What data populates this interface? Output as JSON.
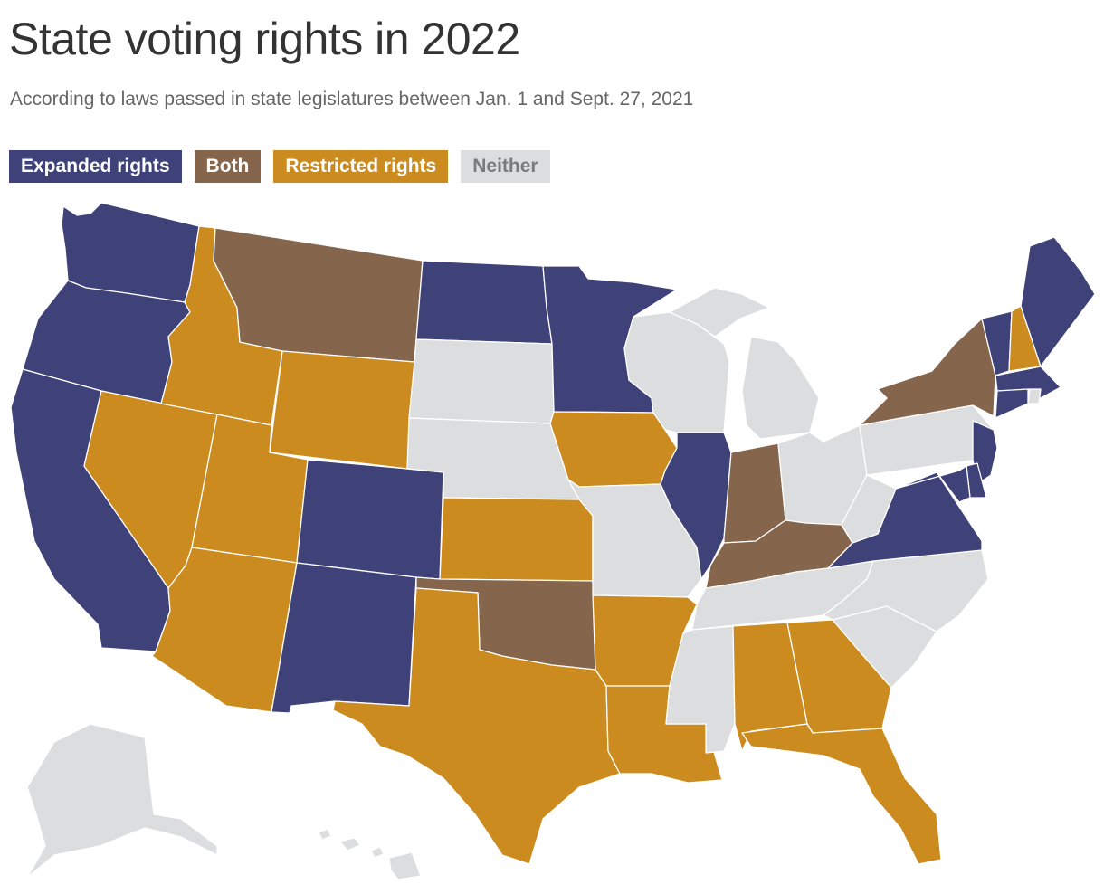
{
  "title": "State voting rights in 2022",
  "subtitle": "According to laws passed in state legislatures between Jan. 1 and Sept. 27, 2021",
  "legend": [
    {
      "key": "expanded",
      "label": "Expanded rights",
      "color": "#3f4278"
    },
    {
      "key": "both",
      "label": "Both",
      "color": "#85654b"
    },
    {
      "key": "restricted",
      "label": "Restricted rights",
      "color": "#cc8b1f"
    },
    {
      "key": "neither",
      "label": "Neither",
      "color": "#dcdddf"
    }
  ],
  "states": [
    {
      "name": "Washington",
      "category": "expanded"
    },
    {
      "name": "Oregon",
      "category": "expanded"
    },
    {
      "name": "California",
      "category": "expanded"
    },
    {
      "name": "Nevada",
      "category": "restricted"
    },
    {
      "name": "Idaho",
      "category": "restricted"
    },
    {
      "name": "Montana",
      "category": "both"
    },
    {
      "name": "Wyoming",
      "category": "restricted"
    },
    {
      "name": "Utah",
      "category": "restricted"
    },
    {
      "name": "Arizona",
      "category": "restricted"
    },
    {
      "name": "Colorado",
      "category": "expanded"
    },
    {
      "name": "New Mexico",
      "category": "expanded"
    },
    {
      "name": "North Dakota",
      "category": "expanded"
    },
    {
      "name": "South Dakota",
      "category": "neither"
    },
    {
      "name": "Nebraska",
      "category": "neither"
    },
    {
      "name": "Kansas",
      "category": "restricted"
    },
    {
      "name": "Oklahoma",
      "category": "both"
    },
    {
      "name": "Texas",
      "category": "restricted"
    },
    {
      "name": "Minnesota",
      "category": "expanded"
    },
    {
      "name": "Iowa",
      "category": "restricted"
    },
    {
      "name": "Missouri",
      "category": "neither"
    },
    {
      "name": "Arkansas",
      "category": "restricted"
    },
    {
      "name": "Louisiana",
      "category": "restricted"
    },
    {
      "name": "Wisconsin",
      "category": "neither"
    },
    {
      "name": "Illinois",
      "category": "expanded"
    },
    {
      "name": "Michigan",
      "category": "neither"
    },
    {
      "name": "Indiana",
      "category": "both"
    },
    {
      "name": "Ohio",
      "category": "neither"
    },
    {
      "name": "Kentucky",
      "category": "both"
    },
    {
      "name": "Tennessee",
      "category": "neither"
    },
    {
      "name": "Mississippi",
      "category": "neither"
    },
    {
      "name": "Alabama",
      "category": "restricted"
    },
    {
      "name": "Georgia",
      "category": "restricted"
    },
    {
      "name": "Florida",
      "category": "restricted"
    },
    {
      "name": "South Carolina",
      "category": "neither"
    },
    {
      "name": "North Carolina",
      "category": "neither"
    },
    {
      "name": "Virginia",
      "category": "expanded"
    },
    {
      "name": "West Virginia",
      "category": "neither"
    },
    {
      "name": "Pennsylvania",
      "category": "neither"
    },
    {
      "name": "New York",
      "category": "both"
    },
    {
      "name": "Vermont",
      "category": "expanded"
    },
    {
      "name": "New Hampshire",
      "category": "restricted"
    },
    {
      "name": "Maine",
      "category": "expanded"
    },
    {
      "name": "Massachusetts",
      "category": "expanded"
    },
    {
      "name": "Rhode Island",
      "category": "neither"
    },
    {
      "name": "Connecticut",
      "category": "expanded"
    },
    {
      "name": "New Jersey",
      "category": "expanded"
    },
    {
      "name": "Delaware",
      "category": "expanded"
    },
    {
      "name": "Maryland",
      "category": "expanded"
    },
    {
      "name": "Alaska",
      "category": "neither"
    },
    {
      "name": "Hawaii",
      "category": "neither"
    }
  ]
}
